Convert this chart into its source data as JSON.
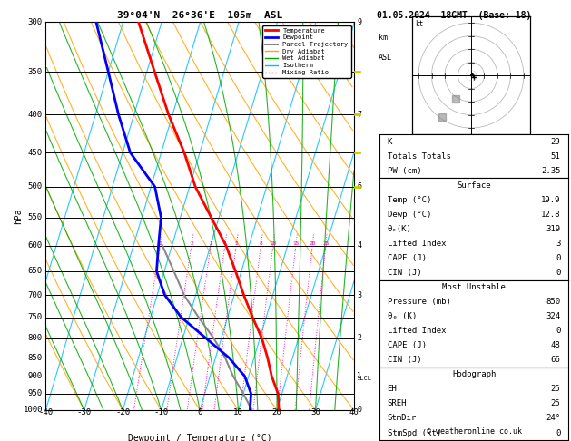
{
  "title_left": "39°04'N  26°36'E  105m  ASL",
  "title_right": "01.05.2024  18GMT  (Base: 18)",
  "xlabel": "Dewpoint / Temperature (°C)",
  "ylabel_left": "hPa",
  "xlim": [
    -40,
    40
  ],
  "pressure_levels": [
    300,
    350,
    400,
    450,
    500,
    550,
    600,
    650,
    700,
    750,
    800,
    850,
    900,
    950,
    1000
  ],
  "background_color": "#ffffff",
  "isotherm_color": "#00bfff",
  "dry_adiabat_color": "#ffa500",
  "wet_adiabat_color": "#00aa00",
  "mixing_ratio_color": "#ff00aa",
  "temp_color": "#ff0000",
  "dewp_color": "#0000ff",
  "parcel_color": "#888888",
  "temp_data": {
    "pressure": [
      1000,
      950,
      900,
      850,
      800,
      750,
      700,
      650,
      600,
      550,
      500,
      450,
      400,
      350,
      300
    ],
    "temp": [
      20.5,
      19.0,
      16.0,
      13.5,
      10.5,
      6.5,
      2.5,
      -1.5,
      -6.0,
      -12.0,
      -18.5,
      -24.0,
      -31.0,
      -38.0,
      -46.0
    ]
  },
  "dewp_data": {
    "pressure": [
      1000,
      950,
      900,
      850,
      800,
      750,
      700,
      650,
      600,
      550,
      500,
      450,
      400,
      350,
      300
    ],
    "temp": [
      13.0,
      12.0,
      9.0,
      3.5,
      -4.0,
      -12.0,
      -18.0,
      -22.0,
      -23.5,
      -25.0,
      -29.0,
      -38.0,
      -44.0,
      -50.0,
      -57.0
    ]
  },
  "parcel_data": {
    "pressure": [
      1000,
      950,
      900,
      850,
      800,
      750,
      700,
      650,
      600
    ],
    "temp": [
      13.5,
      10.0,
      6.0,
      2.5,
      -2.0,
      -7.5,
      -13.0,
      -17.5,
      -22.5
    ]
  },
  "lcl_pressure": 905,
  "mixing_ratio_lines": [
    1,
    2,
    3,
    4,
    5,
    8,
    10,
    15,
    20,
    25
  ],
  "skew_factor": 25,
  "legend_entries": [
    {
      "label": "Temperature",
      "color": "#ff0000",
      "lw": 2,
      "ls": "-"
    },
    {
      "label": "Dewpoint",
      "color": "#0000ff",
      "lw": 2,
      "ls": "-"
    },
    {
      "label": "Parcel Trajectory",
      "color": "#888888",
      "lw": 1.5,
      "ls": "-"
    },
    {
      "label": "Dry Adiabat",
      "color": "#ffa500",
      "lw": 1,
      "ls": "-"
    },
    {
      "label": "Wet Adiabat",
      "color": "#00aa00",
      "lw": 1,
      "ls": "-"
    },
    {
      "label": "Isotherm",
      "color": "#00bfff",
      "lw": 1,
      "ls": "-"
    },
    {
      "label": "Mixing Ratio",
      "color": "#ff00aa",
      "lw": 1,
      "ls": ":"
    }
  ],
  "info_K": 29,
  "info_TT": 51,
  "info_PW": "2.35",
  "surf_temp": "19.9",
  "surf_dewp": "12.8",
  "surf_thetae": "319",
  "surf_li": "3",
  "surf_cape": "0",
  "surf_cin": "0",
  "mu_pres": "850",
  "mu_thetae": "324",
  "mu_li": "0",
  "mu_cape": "48",
  "mu_cin": "66",
  "hodo_eh": "25",
  "hodo_sreh": "25",
  "hodo_stmdir": "24°",
  "hodo_stmspd": "0",
  "copyright": "© weatheronline.co.uk",
  "hodograph_rings": [
    10,
    20,
    30,
    40
  ],
  "km_pressures": [
    300,
    400,
    500,
    600,
    700,
    800,
    900,
    1000
  ],
  "km_labels": [
    "9",
    "7",
    "6",
    "4",
    "3",
    "2",
    "1",
    "0"
  ],
  "yellow_wind_pressures": [
    350,
    400,
    450,
    500
  ],
  "yellow_color": "#cccc00"
}
